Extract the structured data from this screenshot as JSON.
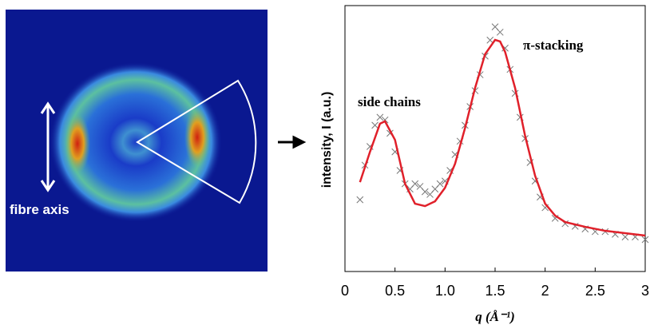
{
  "image_label": "fibre axis",
  "chart_data": {
    "type": "scatter",
    "xlabel": "q (Å⁻¹)",
    "ylabel": "intensity, I (a.u.)",
    "annotations": [
      "side chains",
      "π-stacking"
    ],
    "xlim": [
      0,
      3
    ],
    "ylim": [
      0,
      100
    ],
    "xticks": [
      0,
      0.5,
      {
        "value": 1,
        "label": "1.0"
      },
      1.5,
      2,
      2.5,
      3
    ],
    "series": [
      {
        "mode": "markers",
        "color": "#777777",
        "x": [
          0.15,
          0.2,
          0.25,
          0.3,
          0.35,
          0.4,
          0.45,
          0.5,
          0.55,
          0.6,
          0.65,
          0.7,
          0.75,
          0.8,
          0.85,
          0.9,
          0.95,
          1.0,
          1.05,
          1.1,
          1.15,
          1.2,
          1.25,
          1.3,
          1.35,
          1.4,
          1.45,
          1.5,
          1.55,
          1.6,
          1.65,
          1.7,
          1.75,
          1.8,
          1.85,
          1.9,
          1.95,
          2.0,
          2.1,
          2.2,
          2.3,
          2.4,
          2.5,
          2.6,
          2.7,
          2.8,
          2.9,
          3.0
        ],
        "values": [
          27,
          40,
          47,
          55,
          58,
          57,
          52,
          45,
          38,
          33,
          31,
          33,
          32,
          30,
          29,
          31,
          33,
          34,
          38,
          44,
          49,
          55,
          62,
          68,
          74,
          81,
          87,
          92,
          90,
          84,
          76,
          67,
          58,
          50,
          41,
          34,
          28,
          24,
          20,
          18,
          17,
          16,
          15,
          15,
          14,
          13,
          13,
          12
        ]
      },
      {
        "mode": "line",
        "color": "#e0202a",
        "x": [
          0.15,
          0.25,
          0.35,
          0.4,
          0.5,
          0.6,
          0.7,
          0.8,
          0.9,
          1.0,
          1.1,
          1.2,
          1.3,
          1.4,
          1.5,
          1.55,
          1.6,
          1.7,
          1.8,
          1.9,
          2.0,
          2.1,
          2.2,
          2.4,
          2.6,
          2.8,
          3.0
        ],
        "values": [
          33.6,
          45,
          55.6,
          56.5,
          49.5,
          33,
          25.5,
          24.6,
          26.4,
          31.5,
          40.5,
          54,
          69,
          81.7,
          87.1,
          86.5,
          82.6,
          69,
          51,
          36,
          25.5,
          21,
          18.6,
          16.8,
          15.3,
          14.4,
          13.5
        ]
      }
    ]
  }
}
